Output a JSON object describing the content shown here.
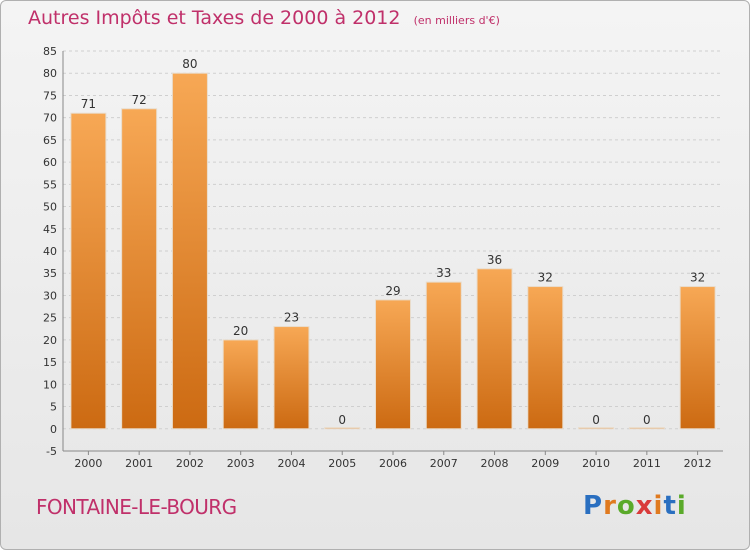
{
  "title": "Autres Impôts et Taxes de 2000 à 2012",
  "subtitle": "(en milliers d'€)",
  "commune": "FONTAINE-LE-BOURG",
  "brand": {
    "text": "Proxiti",
    "colors": [
      "#2a6fc0",
      "#e07a1f",
      "#5aaa2a",
      "#d93a3a",
      "#e07a1f",
      "#2a6fc0",
      "#5aaa2a"
    ]
  },
  "colors": {
    "title": "#c0306a",
    "bar_top": "#f7a855",
    "bar_bottom": "#cc6a12",
    "grid": "#cfcfcf"
  },
  "chart_data": {
    "type": "bar",
    "title": "Autres Impôts et Taxes de 2000 à 2012",
    "subtitle": "(en milliers d'€)",
    "categories": [
      "2000",
      "2001",
      "2002",
      "2003",
      "2004",
      "2005",
      "2006",
      "2007",
      "2008",
      "2009",
      "2010",
      "2011",
      "2012"
    ],
    "values": [
      71,
      72,
      80,
      20,
      23,
      0,
      29,
      33,
      36,
      32,
      0,
      0,
      32
    ],
    "ylim": [
      -5,
      85
    ],
    "yticks": [
      -5,
      0,
      5,
      10,
      15,
      20,
      25,
      30,
      35,
      40,
      45,
      50,
      55,
      60,
      65,
      70,
      75,
      80,
      85
    ],
    "grid": "horizontal",
    "xlabel": "",
    "ylabel": ""
  }
}
